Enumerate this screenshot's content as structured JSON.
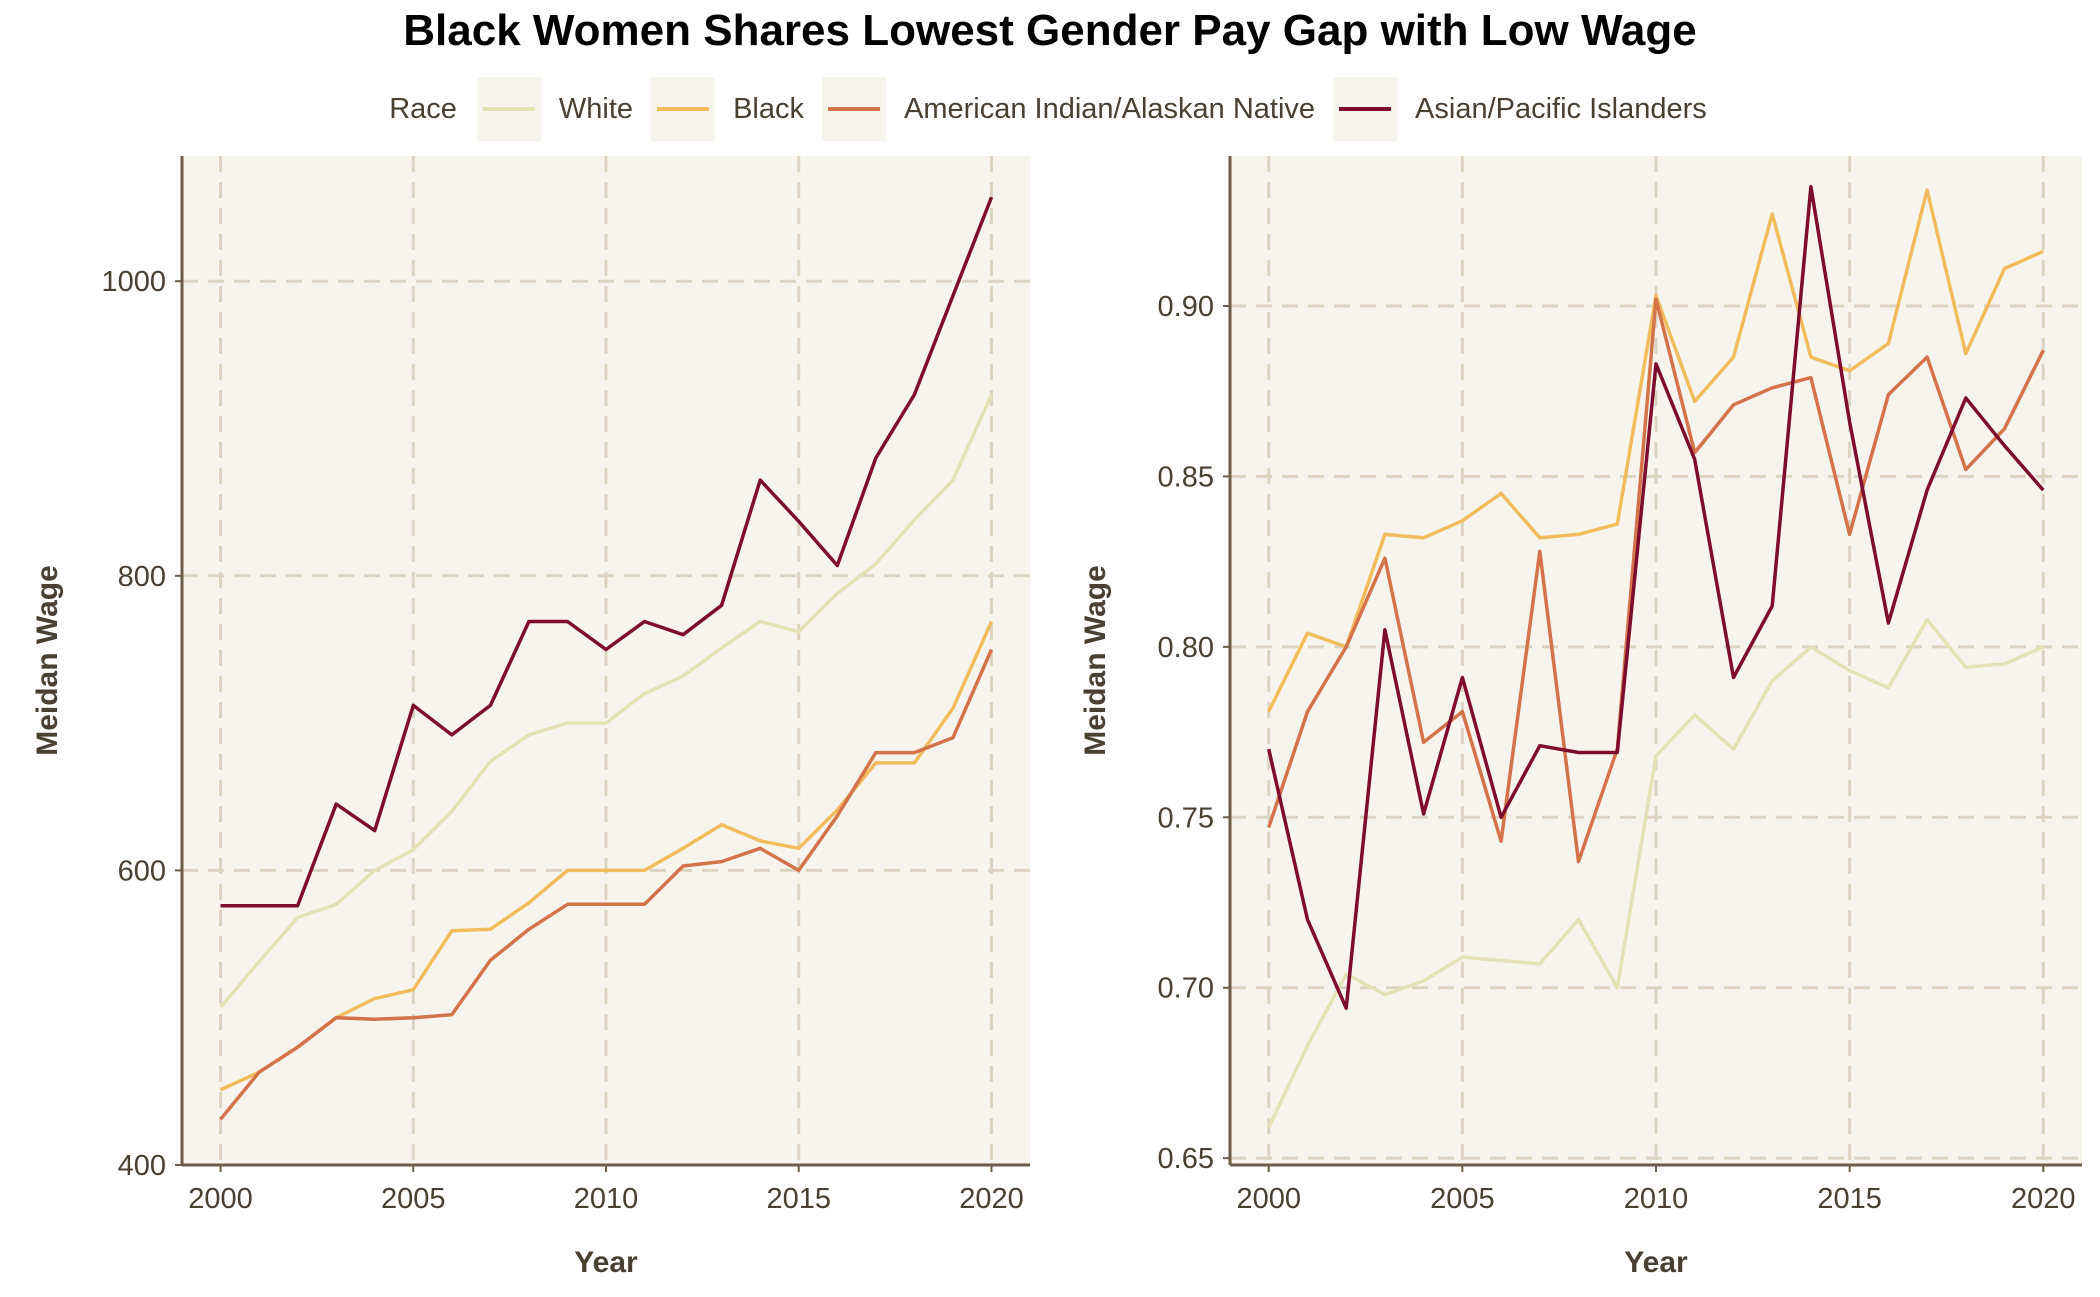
{
  "title": "Black Women Shares Lowest Gender Pay Gap with Low Wage",
  "legend": {
    "title": "Race",
    "placement": "top",
    "items": [
      {
        "label": "White",
        "color": "#e4e2b4"
      },
      {
        "label": "Black",
        "color": "#f2bc5c"
      },
      {
        "label": "American Indian/Alaskan Native",
        "color": "#d4734a"
      },
      {
        "label": "Asian/Pacific Islanders",
        "color": "#7e0c2f"
      }
    ]
  },
  "colors": {
    "panel_bg": "#f7f4ee",
    "grid": "#dcd3c0",
    "axis": "#6b5b47",
    "text": "#4a3f33"
  },
  "chart_data": [
    {
      "type": "line",
      "xlabel": "Year",
      "ylabel": "Meidan Wage",
      "xlim": [
        1999,
        2021
      ],
      "ylim": [
        400,
        1085
      ],
      "xticks": [
        2000,
        2005,
        2010,
        2015,
        2020
      ],
      "yticks": [
        400,
        600,
        800,
        1000
      ],
      "ytick_labels": [
        "400",
        "600",
        "800",
        "1000"
      ],
      "grid": true,
      "x": [
        2000,
        2001,
        2002,
        2003,
        2004,
        2005,
        2006,
        2007,
        2008,
        2009,
        2010,
        2011,
        2012,
        2013,
        2014,
        2015,
        2016,
        2017,
        2018,
        2019,
        2020
      ],
      "series": [
        {
          "name": "White",
          "values": [
            507,
            538,
            568,
            577,
            600,
            614,
            640,
            674,
            692,
            700,
            700,
            720,
            732,
            751,
            769,
            762,
            788,
            808,
            838,
            865,
            923
          ]
        },
        {
          "name": "Black",
          "values": [
            451,
            463,
            480,
            500,
            513,
            519,
            559,
            560,
            578,
            600,
            600,
            600,
            615,
            631,
            620,
            615,
            641,
            673,
            673,
            710,
            769
          ]
        },
        {
          "name": "American Indian/Alaskan Native",
          "values": [
            431,
            463,
            480,
            500,
            499,
            500,
            502,
            539,
            560,
            577,
            577,
            577,
            603,
            606,
            615,
            600,
            637,
            680,
            680,
            690,
            750
          ]
        },
        {
          "name": "Asian/Pacific Islanders",
          "values": [
            576,
            576,
            576,
            645,
            627,
            712,
            692,
            712,
            769,
            769,
            750,
            769,
            760,
            780,
            865,
            837,
            807,
            880,
            923,
            990,
            1057
          ]
        }
      ]
    },
    {
      "type": "line",
      "xlabel": "Year",
      "ylabel": "Meidan Wage",
      "xlim": [
        1999,
        2021
      ],
      "ylim": [
        0.648,
        0.944
      ],
      "xticks": [
        2000,
        2005,
        2010,
        2015,
        2020
      ],
      "yticks": [
        0.65,
        0.7,
        0.75,
        0.8,
        0.85,
        0.9
      ],
      "ytick_labels": [
        "0.65",
        "0.70",
        "0.75",
        "0.80",
        "0.85",
        "0.90"
      ],
      "grid": true,
      "x": [
        2000,
        2001,
        2002,
        2003,
        2004,
        2005,
        2006,
        2007,
        2008,
        2009,
        2010,
        2011,
        2012,
        2013,
        2014,
        2015,
        2016,
        2017,
        2018,
        2019,
        2020
      ],
      "series": [
        {
          "name": "White",
          "values": [
            0.659,
            0.683,
            0.704,
            0.698,
            0.702,
            0.709,
            0.708,
            0.707,
            0.72,
            0.7,
            0.768,
            0.78,
            0.77,
            0.79,
            0.8,
            0.793,
            0.788,
            0.808,
            0.794,
            0.795,
            0.8
          ]
        },
        {
          "name": "Black",
          "values": [
            0.781,
            0.804,
            0.8,
            0.833,
            0.832,
            0.837,
            0.845,
            0.832,
            0.833,
            0.836,
            0.903,
            0.872,
            0.885,
            0.927,
            0.885,
            0.881,
            0.889,
            0.934,
            0.886,
            0.911,
            0.916
          ]
        },
        {
          "name": "American Indian/Alaskan Native",
          "values": [
            0.747,
            0.781,
            0.8,
            0.826,
            0.772,
            0.781,
            0.743,
            0.828,
            0.737,
            0.77,
            0.902,
            0.857,
            0.871,
            0.876,
            0.879,
            0.833,
            0.874,
            0.885,
            0.852,
            0.864,
            0.887
          ]
        },
        {
          "name": "Asian/Pacific Islanders",
          "values": [
            0.77,
            0.72,
            0.694,
            0.805,
            0.751,
            0.791,
            0.75,
            0.771,
            0.769,
            0.769,
            0.883,
            0.855,
            0.791,
            0.812,
            0.935,
            0.866,
            0.807,
            0.846,
            0.873,
            0.859,
            0.846
          ]
        }
      ]
    }
  ]
}
